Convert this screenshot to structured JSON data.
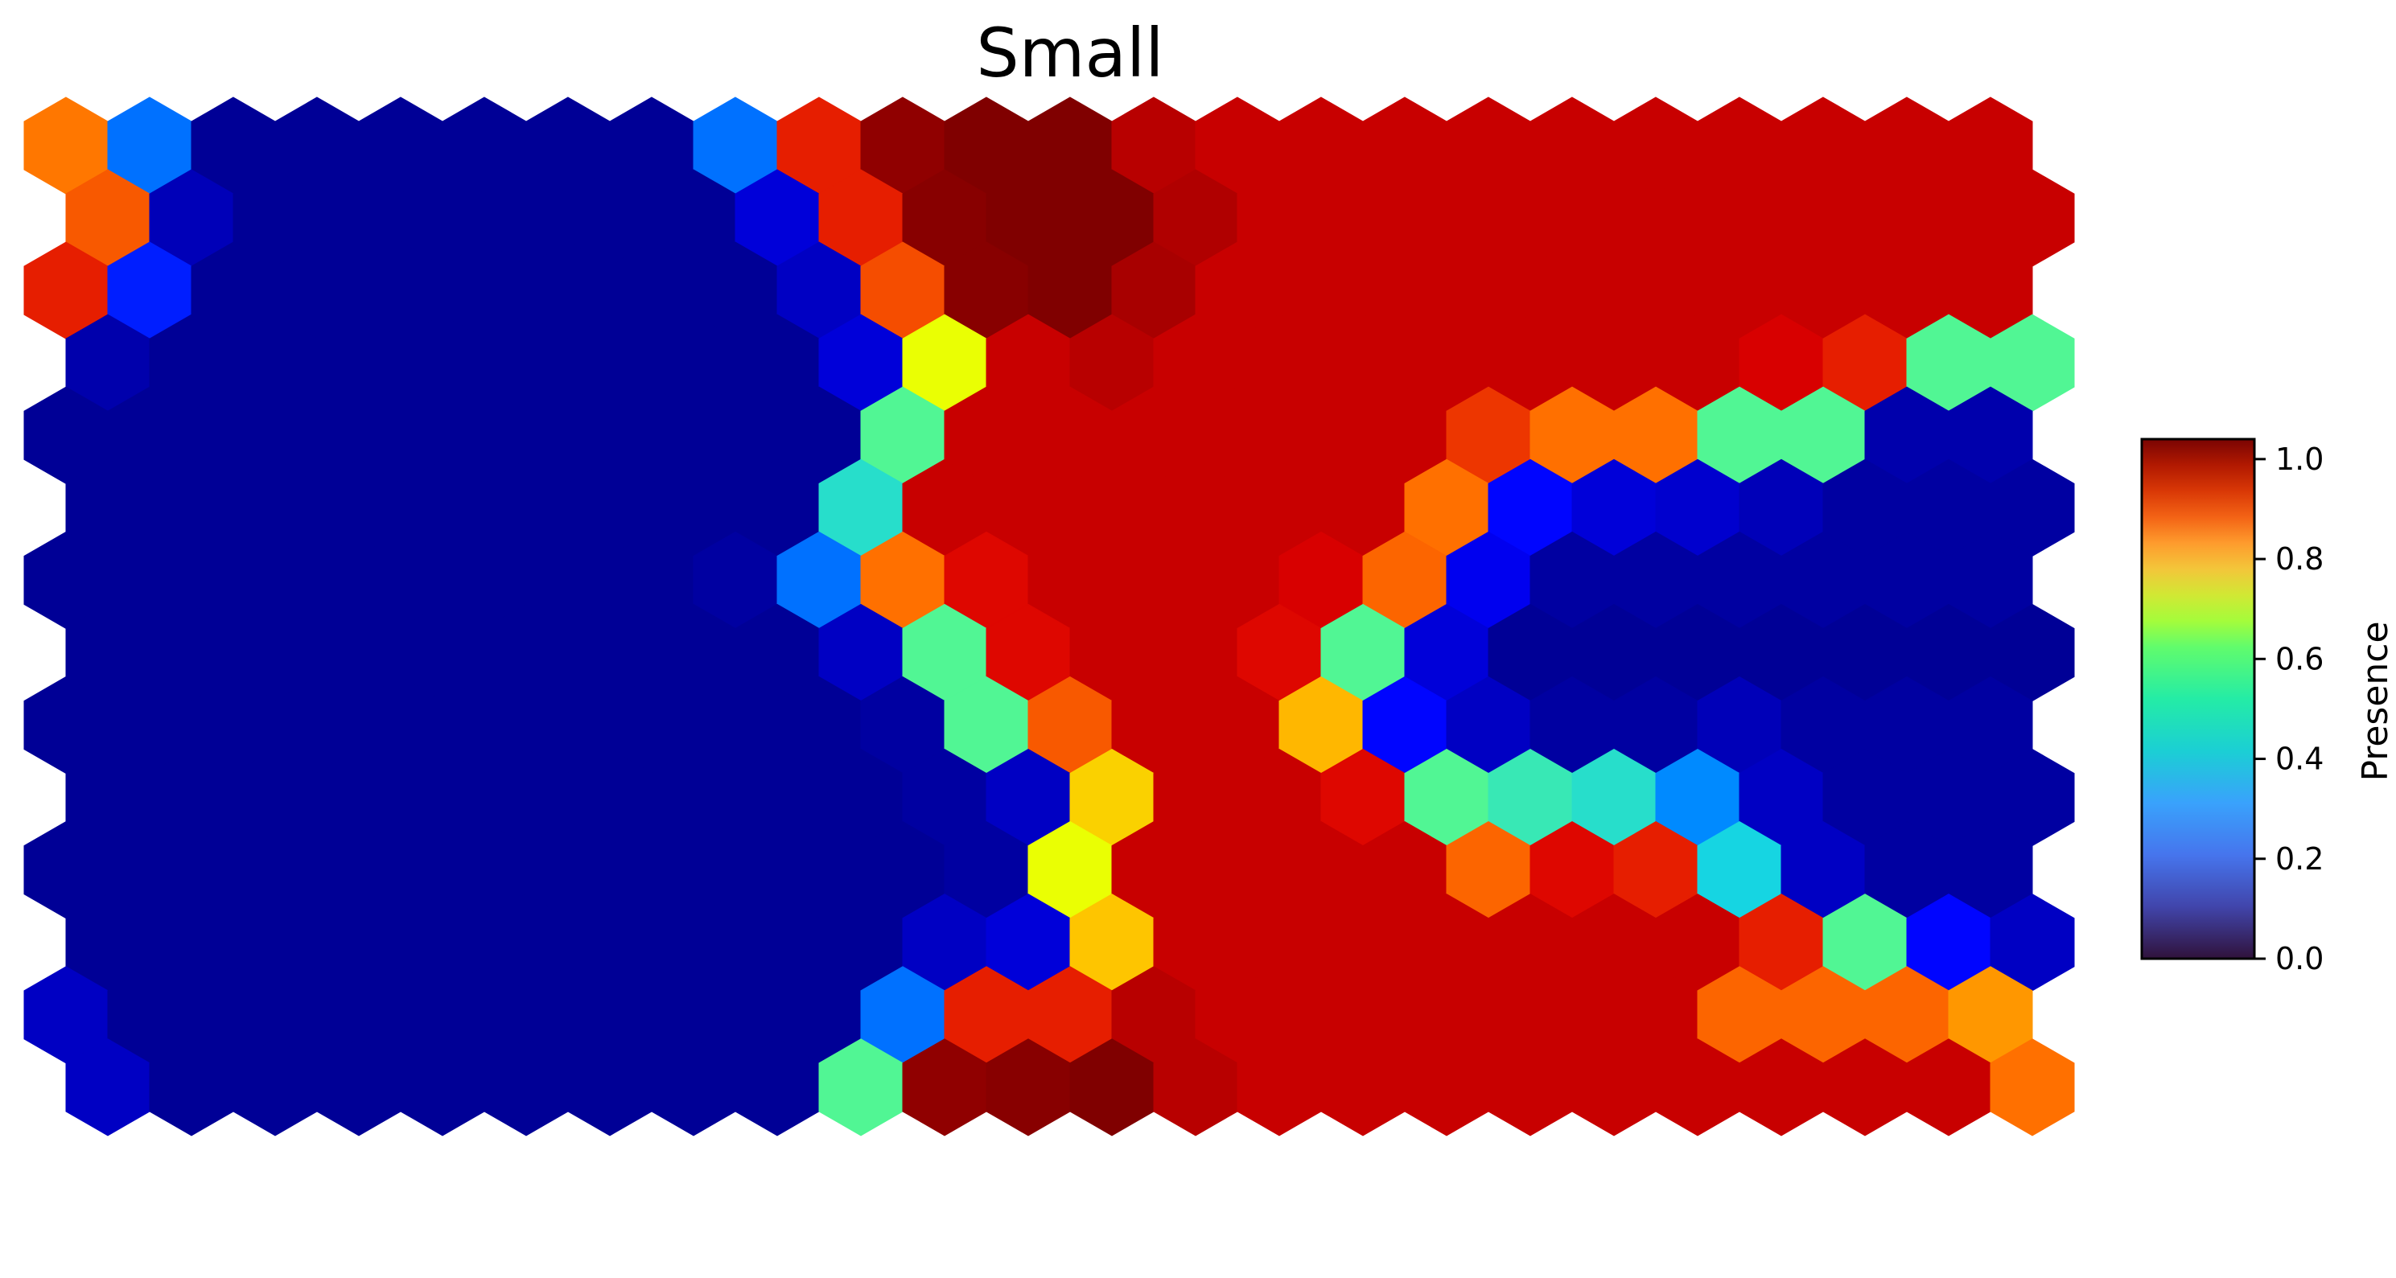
{
  "chart_data": {
    "type": "heatmap",
    "subtype": "hexagonal-som",
    "title": "Small",
    "colormap": "jet",
    "colorbar": {
      "label": "Presence",
      "range": [
        0.0,
        1.04
      ],
      "ticks": [
        0.0,
        0.2,
        0.4,
        0.6,
        0.8,
        1.0
      ],
      "tick_labels": [
        "0.0",
        "0.2",
        "0.4",
        "0.6",
        "0.8",
        "1.0"
      ]
    },
    "grid": {
      "rows": 14,
      "cols": 24,
      "odd_row_offset": "left"
    },
    "values": [
      [
        0.82,
        0.25,
        0.02,
        0.02,
        0.02,
        0.02,
        0.02,
        0.02,
        0.25,
        0.9,
        1.02,
        1.04,
        1.04,
        0.97,
        0.95,
        0.95,
        0.95,
        0.95,
        0.95,
        0.95,
        0.95,
        0.95,
        0.95,
        0.95
      ],
      [
        0.85,
        0.05,
        0.02,
        0.02,
        0.02,
        0.02,
        0.02,
        0.02,
        0.08,
        0.9,
        1.03,
        1.04,
        1.04,
        0.98,
        0.95,
        0.95,
        0.95,
        0.95,
        0.95,
        0.95,
        0.95,
        0.95,
        0.95,
        0.95
      ],
      [
        0.9,
        0.15,
        0.02,
        0.02,
        0.02,
        0.02,
        0.02,
        0.02,
        0.02,
        0.06,
        0.86,
        1.03,
        1.04,
        0.99,
        0.95,
        0.95,
        0.95,
        0.95,
        0.95,
        0.95,
        0.95,
        0.95,
        0.95,
        0.95
      ],
      [
        0.04,
        0.02,
        0.02,
        0.02,
        0.02,
        0.02,
        0.02,
        0.02,
        0.02,
        0.08,
        0.62,
        0.95,
        0.97,
        0.95,
        0.95,
        0.95,
        0.95,
        0.95,
        0.95,
        0.95,
        0.93,
        0.9,
        0.45,
        0.45
      ],
      [
        0.02,
        0.02,
        0.02,
        0.02,
        0.02,
        0.02,
        0.02,
        0.02,
        0.02,
        0.02,
        0.45,
        0.95,
        0.95,
        0.95,
        0.95,
        0.95,
        0.95,
        0.88,
        0.83,
        0.83,
        0.45,
        0.45,
        0.04,
        0.04
      ],
      [
        0.02,
        0.02,
        0.02,
        0.02,
        0.02,
        0.02,
        0.02,
        0.02,
        0.02,
        0.4,
        0.95,
        0.95,
        0.95,
        0.95,
        0.95,
        0.95,
        0.83,
        0.12,
        0.08,
        0.07,
        0.05,
        0.03,
        0.03,
        0.03
      ],
      [
        0.02,
        0.02,
        0.02,
        0.02,
        0.02,
        0.02,
        0.02,
        0.02,
        0.03,
        0.25,
        0.83,
        0.92,
        0.95,
        0.95,
        0.95,
        0.93,
        0.84,
        0.1,
        0.03,
        0.03,
        0.03,
        0.03,
        0.03,
        0.03
      ],
      [
        0.02,
        0.02,
        0.02,
        0.02,
        0.02,
        0.02,
        0.02,
        0.02,
        0.02,
        0.06,
        0.45,
        0.92,
        0.95,
        0.95,
        0.92,
        0.45,
        0.08,
        0.02,
        0.02,
        0.02,
        0.02,
        0.02,
        0.02,
        0.02
      ],
      [
        0.02,
        0.02,
        0.02,
        0.02,
        0.02,
        0.02,
        0.02,
        0.02,
        0.02,
        0.02,
        0.03,
        0.45,
        0.85,
        0.95,
        0.95,
        0.74,
        0.12,
        0.06,
        0.03,
        0.03,
        0.05,
        0.03,
        0.03,
        0.03
      ],
      [
        0.02,
        0.02,
        0.02,
        0.02,
        0.02,
        0.02,
        0.02,
        0.02,
        0.02,
        0.02,
        0.03,
        0.06,
        0.7,
        0.95,
        0.95,
        0.92,
        0.45,
        0.42,
        0.4,
        0.28,
        0.06,
        0.03,
        0.03,
        0.03
      ],
      [
        0.02,
        0.02,
        0.02,
        0.02,
        0.02,
        0.02,
        0.02,
        0.02,
        0.02,
        0.02,
        0.02,
        0.03,
        0.62,
        0.95,
        0.95,
        0.95,
        0.95,
        0.84,
        0.92,
        0.9,
        0.38,
        0.06,
        0.03,
        0.03
      ],
      [
        0.02,
        0.02,
        0.02,
        0.02,
        0.02,
        0.02,
        0.02,
        0.02,
        0.02,
        0.02,
        0.06,
        0.08,
        0.72,
        0.95,
        0.95,
        0.95,
        0.95,
        0.95,
        0.95,
        0.95,
        0.9,
        0.45,
        0.12,
        0.06
      ],
      [
        0.06,
        0.02,
        0.02,
        0.02,
        0.02,
        0.02,
        0.02,
        0.02,
        0.02,
        0.02,
        0.25,
        0.9,
        0.9,
        0.97,
        0.95,
        0.95,
        0.95,
        0.95,
        0.95,
        0.95,
        0.84,
        0.84,
        0.84,
        0.78
      ],
      [
        0.06,
        0.02,
        0.02,
        0.02,
        0.02,
        0.02,
        0.02,
        0.02,
        0.02,
        0.45,
        1.02,
        1.03,
        1.04,
        0.97,
        0.95,
        0.95,
        0.95,
        0.95,
        0.95,
        0.95,
        0.95,
        0.95,
        0.95,
        0.83
      ]
    ]
  }
}
